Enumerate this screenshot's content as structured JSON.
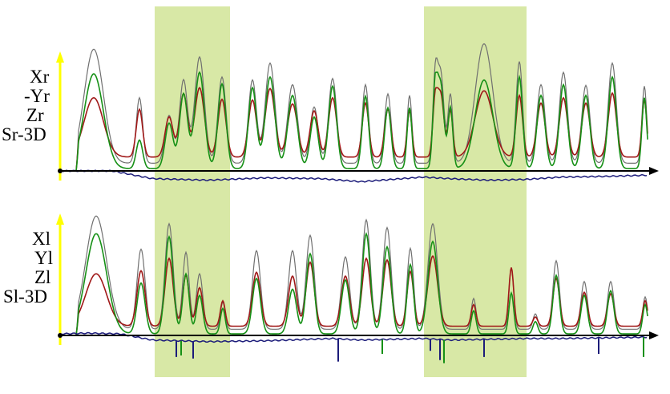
{
  "colors": {
    "highlight": "#d8e8a6",
    "X": "#707070",
    "Y": "#a01818",
    "Z": "#169016",
    "S": "#1c1c7a",
    "y_axis": "#ffff00",
    "baseline": "#000000"
  },
  "highlight_bands": [
    [
      193,
      287
    ],
    [
      529,
      657
    ]
  ],
  "chart_data": [
    {
      "type": "line",
      "panel": "top",
      "legend_labels": [
        "Xr",
        "-Yr",
        "Zr",
        "Sr-3D"
      ],
      "grid": false,
      "x_range": [
        75,
        822
      ],
      "y_range": [
        0,
        160
      ],
      "peaks": [
        {
          "x": 117,
          "w": 12,
          "X": 158,
          "Y": 95,
          "Z": 126
        },
        {
          "x": 174,
          "w": 4,
          "X": 95,
          "Y": 80,
          "Z": 40
        },
        {
          "x": 211,
          "w": 5,
          "X": 72,
          "Y": 70,
          "Z": 62
        },
        {
          "x": 229,
          "w": 5,
          "X": 118,
          "Y": 100,
          "Z": 100
        },
        {
          "x": 249,
          "w": 6,
          "X": 148,
          "Y": 108,
          "Z": 128
        },
        {
          "x": 277,
          "w": 5,
          "X": 122,
          "Y": 93,
          "Z": 113
        },
        {
          "x": 315,
          "w": 5,
          "X": 118,
          "Y": 92,
          "Z": 108
        },
        {
          "x": 337,
          "w": 6,
          "X": 140,
          "Y": 107,
          "Z": 122
        },
        {
          "x": 365,
          "w": 6,
          "X": 112,
          "Y": 87,
          "Z": 98
        },
        {
          "x": 392,
          "w": 5,
          "X": 83,
          "Y": 78,
          "Z": 70
        },
        {
          "x": 415,
          "w": 5,
          "X": 120,
          "Y": 95,
          "Z": 110
        },
        {
          "x": 456,
          "w": 4,
          "X": 112,
          "Y": 88,
          "Z": 97
        },
        {
          "x": 484,
          "w": 4,
          "X": 100,
          "Y": 80,
          "Z": 82
        },
        {
          "x": 511,
          "w": 3,
          "X": 98,
          "Y": 78,
          "Z": 82
        },
        {
          "x": 543,
          "w": 3,
          "X": 115,
          "Y": 88,
          "Z": 104
        },
        {
          "x": 550,
          "w": 4,
          "X": 125,
          "Y": 98,
          "Z": 110
        },
        {
          "x": 562,
          "w": 3,
          "X": 99,
          "Y": 78,
          "Z": 82
        },
        {
          "x": 604,
          "w": 11,
          "X": 165,
          "Y": 104,
          "Z": 118
        },
        {
          "x": 648,
          "w": 4,
          "X": 142,
          "Y": 98,
          "Z": 122
        },
        {
          "x": 675,
          "w": 5,
          "X": 112,
          "Y": 88,
          "Z": 98
        },
        {
          "x": 703,
          "w": 5,
          "X": 128,
          "Y": 95,
          "Z": 112
        },
        {
          "x": 731,
          "w": 5,
          "X": 111,
          "Y": 88,
          "Z": 98
        },
        {
          "x": 764,
          "w": 5,
          "X": 140,
          "Y": 101,
          "Z": 122
        },
        {
          "x": 804,
          "w": 3,
          "X": 110,
          "Y": 92,
          "Z": 95
        }
      ],
      "X_floor": 10,
      "Y_floor": 18,
      "Z_floor": 3,
      "S_profile": [
        [
          75,
          0
        ],
        [
          140,
          0
        ],
        [
          190,
          -10
        ],
        [
          260,
          -12
        ],
        [
          330,
          -9
        ],
        [
          400,
          -10
        ],
        [
          450,
          -14
        ],
        [
          528,
          -8
        ],
        [
          560,
          -10
        ],
        [
          610,
          -12
        ],
        [
          657,
          -11
        ],
        [
          700,
          -8
        ],
        [
          760,
          -7
        ],
        [
          822,
          -5
        ]
      ]
    },
    {
      "type": "line",
      "panel": "bottom",
      "legend_labels": [
        "Xl",
        "Yl",
        "Zl",
        "Sl-3D"
      ],
      "grid": false,
      "x_range": [
        75,
        822
      ],
      "y_range": [
        0,
        160
      ],
      "peaks": [
        {
          "x": 120,
          "w": 13,
          "X": 155,
          "Y": 80,
          "Z": 132
        },
        {
          "x": 176,
          "w": 5,
          "X": 112,
          "Y": 84,
          "Z": 68
        },
        {
          "x": 211,
          "w": 5,
          "X": 145,
          "Y": 100,
          "Z": 128
        },
        {
          "x": 232,
          "w": 4,
          "X": 108,
          "Y": 78,
          "Z": 80
        },
        {
          "x": 249,
          "w": 4,
          "X": 80,
          "Y": 62,
          "Z": 52
        },
        {
          "x": 278,
          "w": 3,
          "X": 43,
          "Y": 45,
          "Z": 35
        },
        {
          "x": 320,
          "w": 5,
          "X": 110,
          "Y": 82,
          "Z": 74
        },
        {
          "x": 365,
          "w": 5,
          "X": 110,
          "Y": 77,
          "Z": 60
        },
        {
          "x": 387,
          "w": 5,
          "X": 130,
          "Y": 95,
          "Z": 106
        },
        {
          "x": 431,
          "w": 5,
          "X": 102,
          "Y": 77,
          "Z": 72
        },
        {
          "x": 457,
          "w": 5,
          "X": 150,
          "Y": 100,
          "Z": 132
        },
        {
          "x": 483,
          "w": 5,
          "X": 140,
          "Y": 98,
          "Z": 115
        },
        {
          "x": 512,
          "w": 4,
          "X": 113,
          "Y": 83,
          "Z": 92
        },
        {
          "x": 540,
          "w": 6,
          "X": 145,
          "Y": 103,
          "Z": 122
        },
        {
          "x": 591,
          "w": 3,
          "X": 48,
          "Y": 40,
          "Z": 32
        },
        {
          "x": 638,
          "w": 3,
          "X": 88,
          "Y": 88,
          "Z": 55
        },
        {
          "x": 668,
          "w": 3,
          "X": 28,
          "Y": 24,
          "Z": 18
        },
        {
          "x": 694,
          "w": 4,
          "X": 97,
          "Y": 74,
          "Z": 78
        },
        {
          "x": 729,
          "w": 4,
          "X": 70,
          "Y": 56,
          "Z": 52
        },
        {
          "x": 762,
          "w": 4,
          "X": 70,
          "Y": 54,
          "Z": 58
        },
        {
          "x": 805,
          "w": 3,
          "X": 50,
          "Y": 45,
          "Z": 40
        }
      ],
      "X_floor": 8,
      "Y_floor": 12,
      "Z_floor": 2,
      "S_profile": [
        [
          75,
          2
        ],
        [
          110,
          3
        ],
        [
          150,
          2
        ],
        [
          190,
          -6
        ],
        [
          260,
          -8
        ],
        [
          330,
          -7
        ],
        [
          415,
          -4
        ],
        [
          450,
          -6
        ],
        [
          528,
          -4
        ],
        [
          560,
          -6
        ],
        [
          610,
          -5
        ],
        [
          657,
          -4
        ],
        [
          700,
          -4
        ],
        [
          760,
          -3
        ],
        [
          822,
          -2
        ]
      ],
      "S_spikes": [
        [
          220,
          -28
        ],
        [
          226,
          -26
        ],
        [
          241,
          -30
        ],
        [
          422,
          -34
        ],
        [
          477,
          -24
        ],
        [
          537,
          -20
        ],
        [
          549,
          -32
        ],
        [
          554,
          -36
        ],
        [
          604,
          -28
        ],
        [
          747,
          -24
        ],
        [
          803,
          -28
        ]
      ]
    }
  ]
}
